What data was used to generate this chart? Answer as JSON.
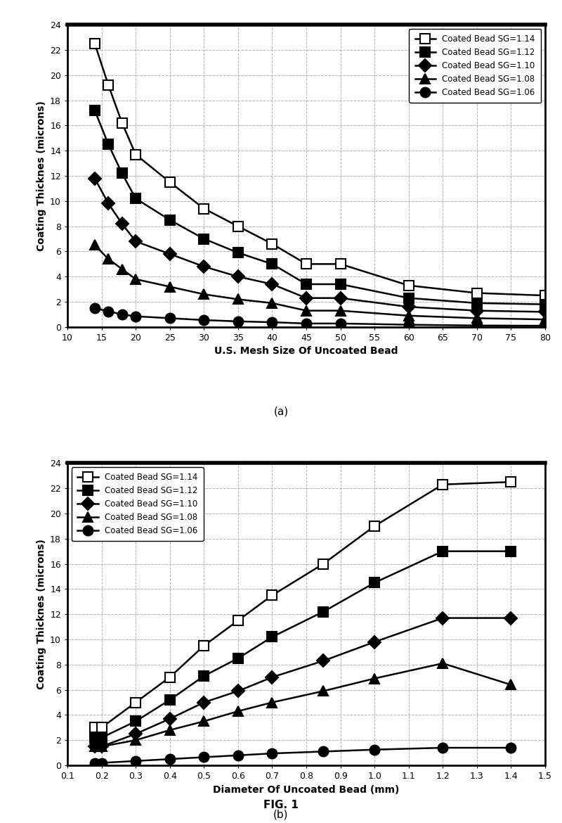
{
  "xlabel_a": "U.S. Mesh Size Of Uncoated Bead",
  "ylabel_a": "Coating Thicknes (microns)",
  "xlabel_b": "Diameter Of Uncoated Bead (mm)",
  "ylabel_b": "Coating Thicknes (microns)",
  "label_a": "(a)",
  "label_b": "(b)",
  "fig_label": "FIG. 1",
  "legend_labels": [
    "Coated Bead SG=1.14",
    "Coated Bead SG=1.12",
    "Coated Bead SG=1.10",
    "Coated Bead SG=1.08",
    "Coated Bead SG=1.06"
  ],
  "mesh_x": [
    14,
    16,
    18,
    20,
    25,
    30,
    35,
    40,
    45,
    50,
    60,
    70,
    80
  ],
  "sg114_mesh_y": [
    22.5,
    19.2,
    16.2,
    13.7,
    11.5,
    9.4,
    8.0,
    6.6,
    5.0,
    5.0,
    3.3,
    2.7,
    2.5
  ],
  "sg112_mesh_y": [
    17.2,
    14.5,
    12.2,
    10.2,
    8.5,
    7.0,
    5.9,
    5.0,
    3.4,
    3.4,
    2.3,
    1.9,
    1.8
  ],
  "sg110_mesh_y": [
    11.8,
    9.8,
    8.2,
    6.8,
    5.8,
    4.8,
    4.0,
    3.4,
    2.3,
    2.3,
    1.6,
    1.3,
    1.2
  ],
  "sg108_mesh_y": [
    6.5,
    5.4,
    4.6,
    3.8,
    3.2,
    2.6,
    2.2,
    1.9,
    1.3,
    1.3,
    0.9,
    0.7,
    0.6
  ],
  "sg106_mesh_y": [
    1.5,
    1.25,
    1.0,
    0.85,
    0.7,
    0.55,
    0.45,
    0.38,
    0.28,
    0.28,
    0.18,
    0.12,
    0.1
  ],
  "diam_x": [
    0.18,
    0.2,
    0.3,
    0.4,
    0.5,
    0.6,
    0.7,
    0.85,
    1.0,
    1.2,
    1.4
  ],
  "sg114_diam_y": [
    3.0,
    3.0,
    5.0,
    7.0,
    9.5,
    11.5,
    13.5,
    16.0,
    19.0,
    22.3,
    22.5
  ],
  "sg112_diam_y": [
    2.2,
    2.2,
    3.5,
    5.2,
    7.1,
    8.5,
    10.2,
    12.2,
    14.5,
    17.0,
    17.0
  ],
  "sg110_diam_y": [
    1.5,
    1.5,
    2.5,
    3.7,
    5.0,
    5.9,
    7.0,
    8.3,
    9.8,
    11.7,
    11.7
  ],
  "sg108_diam_y": [
    1.5,
    1.5,
    2.0,
    2.8,
    3.5,
    4.3,
    5.0,
    5.9,
    6.9,
    8.1,
    6.4
  ],
  "sg106_diam_y": [
    0.2,
    0.2,
    0.35,
    0.5,
    0.65,
    0.8,
    0.95,
    1.1,
    1.25,
    1.4,
    1.4
  ],
  "xlim_a": [
    10,
    80
  ],
  "ylim_a": [
    0,
    24
  ],
  "xticks_a": [
    10,
    15,
    20,
    25,
    30,
    35,
    40,
    45,
    50,
    55,
    60,
    65,
    70,
    75,
    80
  ],
  "yticks_a": [
    0,
    2,
    4,
    6,
    8,
    10,
    12,
    14,
    16,
    18,
    20,
    22,
    24
  ],
  "xlim_b": [
    0.1,
    1.5
  ],
  "ylim_b": [
    0,
    24
  ],
  "xticks_b": [
    0.1,
    0.2,
    0.3,
    0.4,
    0.5,
    0.6,
    0.7,
    0.8,
    0.9,
    1.0,
    1.1,
    1.2,
    1.3,
    1.4,
    1.5
  ],
  "yticks_b": [
    0,
    2,
    4,
    6,
    8,
    10,
    12,
    14,
    16,
    18,
    20,
    22,
    24
  ],
  "bg_color": "#ffffff",
  "grid_color": "#aaaaaa"
}
